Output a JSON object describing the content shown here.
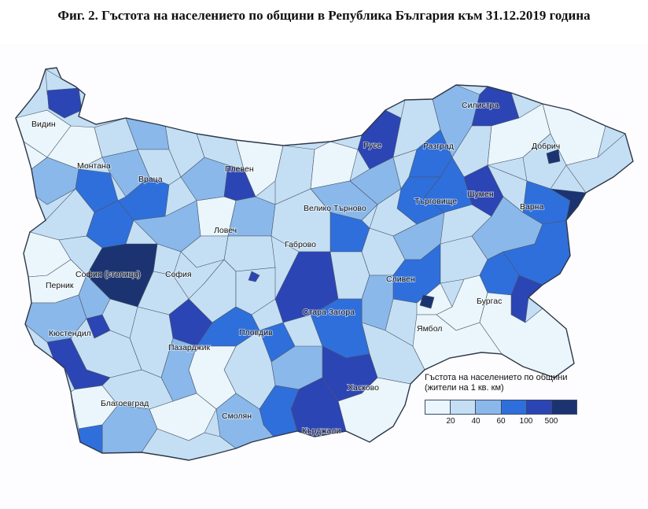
{
  "title": "Фиг. 2. Гъстота на населението по общини в Република България към 31.12.2019 година",
  "map": {
    "cities": [
      {
        "id": "vidin",
        "name": "Видин"
      },
      {
        "id": "montana",
        "name": "Монтана"
      },
      {
        "id": "vratsa",
        "name": "Враца"
      },
      {
        "id": "pleven",
        "name": "Плевен"
      },
      {
        "id": "ruse",
        "name": "Русе"
      },
      {
        "id": "silistra",
        "name": "Силистра"
      },
      {
        "id": "dobrich",
        "name": "Добрич"
      },
      {
        "id": "razgrad",
        "name": "Разград"
      },
      {
        "id": "targovishte",
        "name": "Търговище"
      },
      {
        "id": "shumen",
        "name": "Шумен"
      },
      {
        "id": "varna",
        "name": "Варна"
      },
      {
        "id": "veliko-tarnovo",
        "name": "Велико Търново"
      },
      {
        "id": "lovech",
        "name": "Ловеч"
      },
      {
        "id": "gabrovo",
        "name": "Габрово"
      },
      {
        "id": "sofia-stolitsa",
        "name": "София (столица)"
      },
      {
        "id": "sofia",
        "name": "София"
      },
      {
        "id": "pernik",
        "name": "Перник"
      },
      {
        "id": "kyustendil",
        "name": "Кюстендил"
      },
      {
        "id": "pazardzhik",
        "name": "Пазарджик"
      },
      {
        "id": "plovdiv",
        "name": "Пловдив"
      },
      {
        "id": "stara-zagora",
        "name": "Стара Загора"
      },
      {
        "id": "sliven",
        "name": "Сливен"
      },
      {
        "id": "yambol",
        "name": "Ямбол"
      },
      {
        "id": "burgas",
        "name": "Бургас"
      },
      {
        "id": "haskovo",
        "name": "Хасково"
      },
      {
        "id": "kardzhali",
        "name": "Кърджали"
      },
      {
        "id": "smolyan",
        "name": "Смолян"
      },
      {
        "id": "blagoevgrad",
        "name": "Благоевград"
      }
    ],
    "colors": {
      "class1": "#eaf6fc",
      "class2": "#c4dff4",
      "class3": "#8ab8ea",
      "class4": "#2f6fdc",
      "class5": "#2c45b4",
      "class6": "#1b3471",
      "border": "#4a5568"
    }
  },
  "legend": {
    "title_line1": "Гъстота на населението по общини",
    "title_line2": "(жители  на 1 кв. км)",
    "colors": [
      "#eaf6fc",
      "#c4dff4",
      "#8ab8ea",
      "#2f6fdc",
      "#2c45b4",
      "#1b3471"
    ],
    "ticks": [
      "20",
      "40",
      "60",
      "100",
      "500"
    ]
  }
}
